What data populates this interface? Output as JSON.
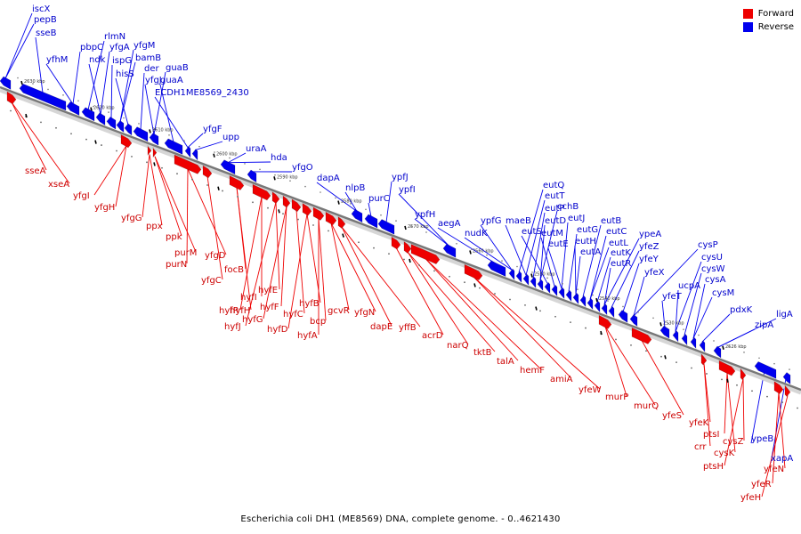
{
  "caption": "Escherichia coli DH1 (ME8569) DNA, complete genome. - 0..4621430",
  "legend": [
    {
      "label": "Forward",
      "color": "#ee0000"
    },
    {
      "label": "Reverse",
      "color": "#0000ee"
    }
  ],
  "colors": {
    "forward": "#ee0000",
    "reverse": "#0000ee",
    "forward_label": "#cc0000",
    "reverse_label": "#0000cc",
    "backbone": "#888888"
  },
  "ticks": [
    "2630 kbp",
    "2620 kbp",
    "2610 kbp",
    "2600 kbp",
    "2590 kbp",
    "2580 kbp",
    "2570 kbp",
    "2560 kbp",
    "2550 kbp",
    "2540 kbp",
    "2530 kbp",
    "2526 kbp"
  ],
  "reverse_genes": [
    "iscX",
    "pepB",
    "sseB",
    "yfhM",
    "pbpC",
    "rlmN",
    "ndk",
    "yfgA",
    "ispG",
    "yfgM",
    "bamB",
    "hisS",
    "der",
    "guaB",
    "yfgJ",
    "guaA",
    "ECDH1ME8569_2430",
    "yfgF",
    "upp",
    "uraA",
    "hda",
    "yfgO",
    "dapA",
    "nlpB",
    "purC",
    "ypfJ",
    "ypfI",
    "ypfH",
    "aegA",
    "ypfG",
    "nudK",
    "eutQ",
    "eutT",
    "maeB",
    "eutP",
    "cchB",
    "eutD",
    "eutS",
    "eutM",
    "eutJ",
    "eutE",
    "eutG",
    "eutH",
    "eutA",
    "eutB",
    "eutC",
    "eutL",
    "eutK",
    "eutR",
    "ypeA",
    "yfeZ",
    "yfeY",
    "yfeX",
    "cysP",
    "yfeT",
    "ucpA",
    "cysU",
    "cysW",
    "cysA",
    "cysM",
    "pdxK",
    "zipA",
    "ligA",
    "ypeB",
    "xapA"
  ],
  "forward_genes": [
    "sseA",
    "xseA",
    "yfgI",
    "yfgH",
    "yfgG",
    "ppx",
    "ppk",
    "purM",
    "purN",
    "yfgD",
    "yfgC",
    "focB",
    "hyfH",
    "hyfR",
    "hyfI",
    "hyfJ",
    "hyfE",
    "hyfG",
    "hyfF",
    "hyfC",
    "hyfB",
    "hyfD",
    "hyfA",
    "bcp",
    "gcvR",
    "yfgN",
    "dapE",
    "yffB",
    "acrD",
    "narQ",
    "tktB",
    "talA",
    "hemF",
    "amiA",
    "yfeW",
    "murP",
    "murQ",
    "yfeS",
    "yfeK",
    "crr",
    "ptsI",
    "cysK",
    "cysZ",
    "ptsH",
    "yfeN",
    "yfeR",
    "yfeH"
  ]
}
